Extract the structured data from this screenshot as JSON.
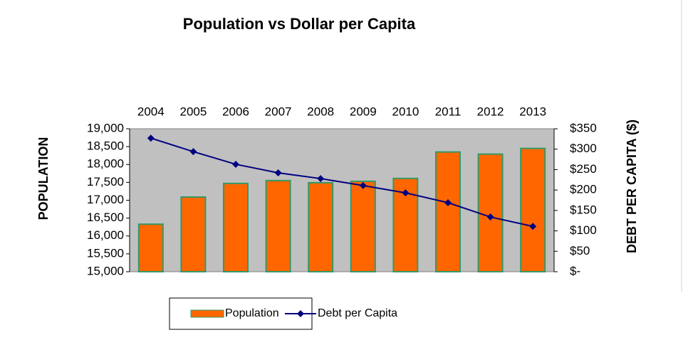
{
  "chart_data": {
    "type": "bar_line",
    "title": "Population vs Dollar per Capita",
    "y_label": "POPULATION",
    "y2_label": "DEBT PER CAPITA ($)",
    "categories": [
      "2004",
      "2005",
      "2006",
      "2007",
      "2008",
      "2009",
      "2010",
      "2011",
      "2012",
      "2013"
    ],
    "series": [
      {
        "name": "Population",
        "type": "bar",
        "color": "#ff6600",
        "edge_color": "#339966",
        "values": [
          16330,
          17090,
          17470,
          17550,
          17490,
          17530,
          17610,
          18350,
          18290,
          18450
        ]
      },
      {
        "name": "Debt per Capita",
        "type": "line",
        "axis": "y2",
        "color": "#000080",
        "values": [
          327,
          294,
          263,
          242,
          228,
          211,
          193,
          169,
          134,
          111
        ]
      }
    ],
    "ylim": [
      15000,
      19000
    ],
    "yticks": [
      {
        "value": 15000,
        "label": "15,000"
      },
      {
        "value": 15500,
        "label": "15,500"
      },
      {
        "value": 16000,
        "label": "16,000"
      },
      {
        "value": 16500,
        "label": "16,500"
      },
      {
        "value": 17000,
        "label": "17,000"
      },
      {
        "value": 17500,
        "label": "17,500"
      },
      {
        "value": 18000,
        "label": "18,000"
      },
      {
        "value": 18500,
        "label": "18,500"
      },
      {
        "value": 19000,
        "label": "19,000"
      }
    ],
    "y2lim": [
      0,
      350
    ],
    "y2ticks": [
      {
        "value": 0,
        "label": "$-"
      },
      {
        "value": 50,
        "label": "$50"
      },
      {
        "value": 100,
        "label": "$100"
      },
      {
        "value": 150,
        "label": "$150"
      },
      {
        "value": 200,
        "label": "$200"
      },
      {
        "value": 250,
        "label": "$250"
      },
      {
        "value": 300,
        "label": "$300"
      },
      {
        "value": 350,
        "label": "$350"
      }
    ],
    "plot_background": "#c0c0c0",
    "legend": "bottom"
  }
}
